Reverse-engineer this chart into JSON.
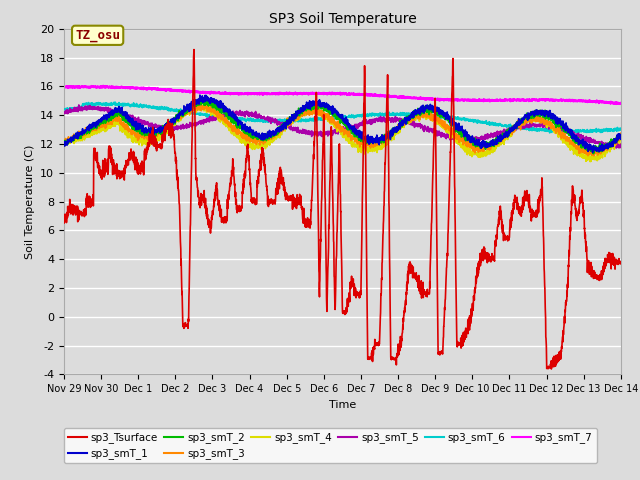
{
  "title": "SP3 Soil Temperature",
  "ylabel": "Soil Temperature (C)",
  "xlabel": "Time",
  "ylim": [
    -4,
    20
  ],
  "yticks": [
    -4,
    -2,
    0,
    2,
    4,
    6,
    8,
    10,
    12,
    14,
    16,
    18,
    20
  ],
  "xtick_labels": [
    "Nov 29",
    "Nov 30",
    "Dec 1",
    "Dec 2",
    "Dec 3",
    "Dec 4",
    "Dec 5",
    "Dec 6",
    "Dec 7",
    "Dec 8",
    "Dec 9",
    "Dec 10",
    "Dec 11",
    "Dec 12",
    "Dec 13",
    "Dec 14"
  ],
  "tz_label": "TZ_osu",
  "bg_color": "#dcdcdc",
  "line_colors": {
    "sp3_Tsurface": "#dd0000",
    "sp3_smT_1": "#0000cc",
    "sp3_smT_2": "#00bb00",
    "sp3_smT_3": "#ff8800",
    "sp3_smT_4": "#dddd00",
    "sp3_smT_5": "#aa00aa",
    "sp3_smT_6": "#00cccc",
    "sp3_smT_7": "#ff00ff"
  }
}
